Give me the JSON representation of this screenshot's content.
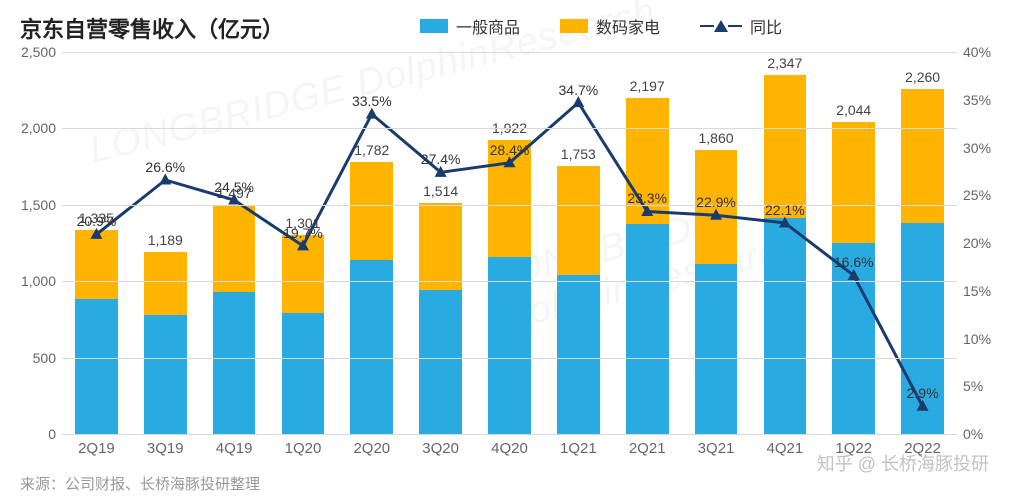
{
  "chart": {
    "type": "stacked-bar-with-line",
    "title": "京东自营零售收入（亿元）",
    "title_fontsize": 22,
    "title_color": "#222222",
    "background_color": "#ffffff",
    "grid_color": "#d9d9d9",
    "axis_label_color": "#666666",
    "axis_label_fontsize": 14,
    "categories": [
      "2Q19",
      "3Q19",
      "4Q19",
      "1Q20",
      "2Q20",
      "3Q20",
      "4Q20",
      "1Q21",
      "2Q21",
      "3Q21",
      "4Q21",
      "1Q22",
      "2Q22"
    ],
    "totals": [
      1335,
      1189,
      1497,
      1301,
      1782,
      1514,
      1922,
      1753,
      2197,
      1860,
      2347,
      2044,
      2260
    ],
    "series": [
      {
        "name": "一般商品",
        "color": "#29abe2",
        "values": [
          885,
          780,
          930,
          790,
          1140,
          940,
          1160,
          1040,
          1375,
          1110,
          1415,
          1250,
          1380
        ]
      },
      {
        "name": "数码家电",
        "color": "#ffb400",
        "values": [
          450,
          409,
          567,
          511,
          642,
          574,
          762,
          713,
          822,
          750,
          932,
          794,
          880
        ]
      }
    ],
    "line_series": {
      "name": "同比",
      "color": "#1a3b6e",
      "marker": "triangle",
      "marker_size": 10,
      "line_width": 3,
      "values_pct": [
        20.9,
        26.6,
        24.5,
        19.7,
        33.5,
        27.4,
        28.4,
        34.7,
        23.3,
        22.9,
        22.1,
        16.6,
        2.9
      ],
      "labels": [
        "20.9%",
        "26.6%",
        "24.5%",
        "19.7%",
        "33.5%",
        "27.4%",
        "28.4%",
        "34.7%",
        "23.3%",
        "22.9%",
        "22.1%",
        "16.6%",
        "2.9%"
      ]
    },
    "y_left": {
      "min": 0,
      "max": 2500,
      "step": 500,
      "ticks": [
        "0",
        "500",
        "1,000",
        "1,500",
        "2,000",
        "2,500"
      ]
    },
    "y_right": {
      "min": 0,
      "max": 40,
      "step": 5,
      "ticks": [
        "0%",
        "5%",
        "10%",
        "15%",
        "20%",
        "25%",
        "30%",
        "35%",
        "40%"
      ]
    },
    "bar_width_ratio": 0.62,
    "data_label_fontsize": 14,
    "data_label_color": "#444444"
  },
  "legend": {
    "items": [
      {
        "label": "一般商品",
        "type": "box",
        "color": "#29abe2"
      },
      {
        "label": "数码家电",
        "type": "box",
        "color": "#ffb400"
      },
      {
        "label": "同比",
        "type": "line-triangle",
        "color": "#1a3b6e"
      }
    ]
  },
  "source": "来源：公司财报、长桥海豚投研整理",
  "watermark_corner": "知乎 @ 长桥海豚投研",
  "watermark_bg": "LONGBRIDGE DolphinResearch"
}
